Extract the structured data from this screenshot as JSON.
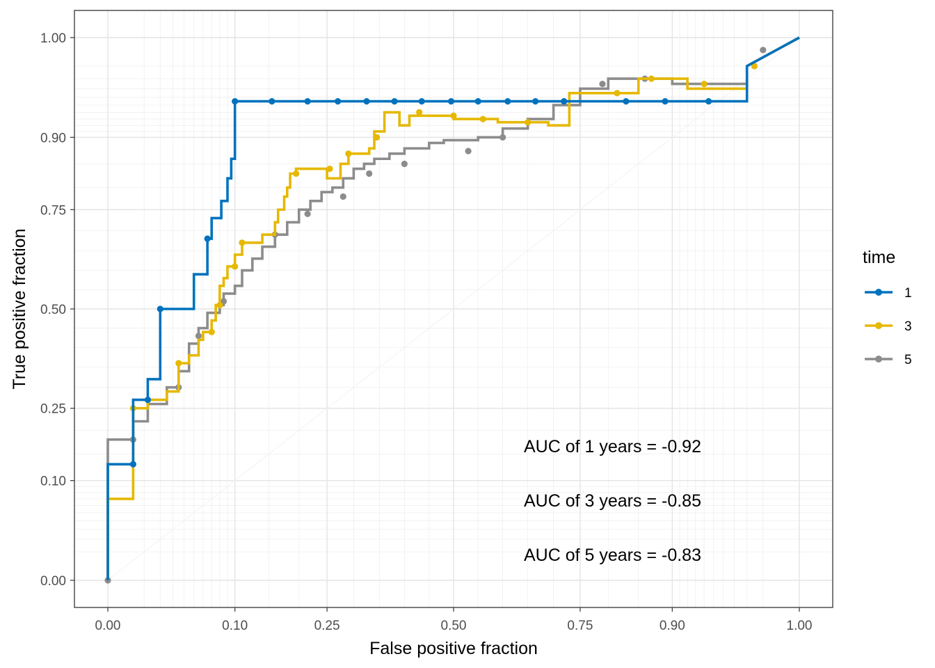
{
  "chart_data": {
    "type": "line",
    "xlabel": "False positive fraction",
    "ylabel": "True positive fraction",
    "xlim": [
      -0.1,
      1.1
    ],
    "ylim": [
      -0.05,
      1.05
    ],
    "x_ticks": [
      "0.00",
      "0.10",
      "0.25",
      "0.50",
      "0.75",
      "0.90",
      "1.00"
    ],
    "y_ticks": [
      "0.00",
      "0.10",
      "0.25",
      "0.50",
      "0.75",
      "0.90",
      "1.00"
    ],
    "grid": true,
    "legend": {
      "title": "time",
      "placement": "right"
    },
    "annotations": [
      "AUC of 1 years = -0.92",
      "AUC of 3 years = -0.85",
      "AUC of 5 years = -0.83"
    ],
    "series": [
      {
        "name": "1",
        "color": "#0072bd",
        "points": [
          [
            0,
            0
          ],
          [
            0,
            0.13
          ],
          [
            0.005,
            0.13
          ],
          [
            0.005,
            0.27
          ],
          [
            0.012,
            0.27
          ],
          [
            0.012,
            0.32
          ],
          [
            0.02,
            0.32
          ],
          [
            0.02,
            0.5
          ],
          [
            0.05,
            0.5
          ],
          [
            0.05,
            0.59
          ],
          [
            0.065,
            0.59
          ],
          [
            0.065,
            0.68
          ],
          [
            0.07,
            0.68
          ],
          [
            0.07,
            0.73
          ],
          [
            0.082,
            0.73
          ],
          [
            0.082,
            0.77
          ],
          [
            0.09,
            0.77
          ],
          [
            0.09,
            0.82
          ],
          [
            0.095,
            0.82
          ],
          [
            0.095,
            0.86
          ],
          [
            0.1,
            0.86
          ],
          [
            0.1,
            0.955
          ],
          [
            0.98,
            0.955
          ],
          [
            0.98,
            0.99
          ],
          [
            1.0,
            1.0
          ]
        ],
        "markers": [
          [
            0.005,
            0.13
          ],
          [
            0.012,
            0.27
          ],
          [
            0.02,
            0.5
          ],
          [
            0.065,
            0.68
          ],
          [
            0.1,
            0.955
          ],
          [
            0.155,
            0.955
          ],
          [
            0.215,
            0.955
          ],
          [
            0.27,
            0.955
          ],
          [
            0.325,
            0.955
          ],
          [
            0.38,
            0.955
          ],
          [
            0.435,
            0.955
          ],
          [
            0.495,
            0.955
          ],
          [
            0.55,
            0.955
          ],
          [
            0.61,
            0.955
          ],
          [
            0.665,
            0.955
          ],
          [
            0.72,
            0.955
          ],
          [
            0.83,
            0.955
          ],
          [
            0.89,
            0.955
          ],
          [
            0.945,
            0.955
          ]
        ]
      },
      {
        "name": "3",
        "color": "#e6b800",
        "points": [
          [
            0,
            0
          ],
          [
            0,
            0.07
          ],
          [
            0.005,
            0.07
          ],
          [
            0.005,
            0.25
          ],
          [
            0.012,
            0.25
          ],
          [
            0.012,
            0.27
          ],
          [
            0.025,
            0.27
          ],
          [
            0.025,
            0.29
          ],
          [
            0.035,
            0.29
          ],
          [
            0.035,
            0.36
          ],
          [
            0.045,
            0.36
          ],
          [
            0.045,
            0.38
          ],
          [
            0.055,
            0.38
          ],
          [
            0.055,
            0.42
          ],
          [
            0.06,
            0.42
          ],
          [
            0.06,
            0.44
          ],
          [
            0.07,
            0.44
          ],
          [
            0.07,
            0.47
          ],
          [
            0.075,
            0.47
          ],
          [
            0.075,
            0.51
          ],
          [
            0.08,
            0.51
          ],
          [
            0.08,
            0.56
          ],
          [
            0.085,
            0.56
          ],
          [
            0.085,
            0.58
          ],
          [
            0.09,
            0.58
          ],
          [
            0.09,
            0.61
          ],
          [
            0.1,
            0.61
          ],
          [
            0.1,
            0.64
          ],
          [
            0.11,
            0.64
          ],
          [
            0.11,
            0.67
          ],
          [
            0.14,
            0.67
          ],
          [
            0.14,
            0.69
          ],
          [
            0.16,
            0.69
          ],
          [
            0.16,
            0.72
          ],
          [
            0.165,
            0.72
          ],
          [
            0.165,
            0.75
          ],
          [
            0.175,
            0.75
          ],
          [
            0.175,
            0.78
          ],
          [
            0.18,
            0.78
          ],
          [
            0.18,
            0.8
          ],
          [
            0.185,
            0.8
          ],
          [
            0.185,
            0.83
          ],
          [
            0.195,
            0.83
          ],
          [
            0.195,
            0.84
          ],
          [
            0.25,
            0.84
          ],
          [
            0.25,
            0.82
          ],
          [
            0.275,
            0.82
          ],
          [
            0.275,
            0.85
          ],
          [
            0.29,
            0.85
          ],
          [
            0.29,
            0.87
          ],
          [
            0.33,
            0.87
          ],
          [
            0.33,
            0.88
          ],
          [
            0.34,
            0.88
          ],
          [
            0.34,
            0.91
          ],
          [
            0.36,
            0.91
          ],
          [
            0.36,
            0.94
          ],
          [
            0.39,
            0.94
          ],
          [
            0.39,
            0.92
          ],
          [
            0.41,
            0.92
          ],
          [
            0.41,
            0.935
          ],
          [
            0.5,
            0.935
          ],
          [
            0.5,
            0.93
          ],
          [
            0.59,
            0.93
          ],
          [
            0.59,
            0.925
          ],
          [
            0.69,
            0.925
          ],
          [
            0.69,
            0.92
          ],
          [
            0.73,
            0.92
          ],
          [
            0.73,
            0.965
          ],
          [
            0.85,
            0.965
          ],
          [
            0.85,
            0.98
          ],
          [
            0.92,
            0.98
          ],
          [
            0.92,
            0.97
          ],
          [
            0.98,
            0.97
          ],
          [
            0.98,
            0.99
          ],
          [
            1.0,
            1.0
          ]
        ],
        "markers": [
          [
            0.005,
            0.25
          ],
          [
            0.035,
            0.36
          ],
          [
            0.07,
            0.44
          ],
          [
            0.08,
            0.51
          ],
          [
            0.1,
            0.61
          ],
          [
            0.11,
            0.67
          ],
          [
            0.195,
            0.83
          ],
          [
            0.255,
            0.84
          ],
          [
            0.29,
            0.87
          ],
          [
            0.345,
            0.9
          ],
          [
            0.43,
            0.94
          ],
          [
            0.5,
            0.935
          ],
          [
            0.56,
            0.93
          ],
          [
            0.65,
            0.925
          ],
          [
            0.815,
            0.965
          ],
          [
            0.87,
            0.98
          ],
          [
            0.94,
            0.975
          ],
          [
            0.985,
            0.99
          ]
        ]
      },
      {
        "name": "5",
        "color": "#8c8c8c",
        "points": [
          [
            0,
            0
          ],
          [
            0,
            0.18
          ],
          [
            0.005,
            0.18
          ],
          [
            0.005,
            0.22
          ],
          [
            0.012,
            0.22
          ],
          [
            0.012,
            0.26
          ],
          [
            0.025,
            0.26
          ],
          [
            0.025,
            0.3
          ],
          [
            0.035,
            0.3
          ],
          [
            0.035,
            0.34
          ],
          [
            0.045,
            0.34
          ],
          [
            0.045,
            0.41
          ],
          [
            0.055,
            0.41
          ],
          [
            0.055,
            0.45
          ],
          [
            0.065,
            0.45
          ],
          [
            0.065,
            0.49
          ],
          [
            0.08,
            0.49
          ],
          [
            0.08,
            0.51
          ],
          [
            0.085,
            0.51
          ],
          [
            0.085,
            0.54
          ],
          [
            0.1,
            0.54
          ],
          [
            0.1,
            0.56
          ],
          [
            0.11,
            0.56
          ],
          [
            0.11,
            0.6
          ],
          [
            0.125,
            0.6
          ],
          [
            0.125,
            0.63
          ],
          [
            0.14,
            0.63
          ],
          [
            0.14,
            0.66
          ],
          [
            0.16,
            0.66
          ],
          [
            0.16,
            0.69
          ],
          [
            0.18,
            0.69
          ],
          [
            0.18,
            0.72
          ],
          [
            0.2,
            0.72
          ],
          [
            0.2,
            0.75
          ],
          [
            0.22,
            0.75
          ],
          [
            0.22,
            0.77
          ],
          [
            0.24,
            0.77
          ],
          [
            0.24,
            0.79
          ],
          [
            0.26,
            0.79
          ],
          [
            0.26,
            0.8
          ],
          [
            0.28,
            0.8
          ],
          [
            0.28,
            0.82
          ],
          [
            0.3,
            0.82
          ],
          [
            0.3,
            0.84
          ],
          [
            0.32,
            0.84
          ],
          [
            0.32,
            0.85
          ],
          [
            0.34,
            0.85
          ],
          [
            0.34,
            0.86
          ],
          [
            0.37,
            0.86
          ],
          [
            0.37,
            0.87
          ],
          [
            0.4,
            0.87
          ],
          [
            0.4,
            0.88
          ],
          [
            0.45,
            0.88
          ],
          [
            0.45,
            0.89
          ],
          [
            0.48,
            0.89
          ],
          [
            0.48,
            0.895
          ],
          [
            0.55,
            0.895
          ],
          [
            0.55,
            0.9
          ],
          [
            0.6,
            0.9
          ],
          [
            0.6,
            0.915
          ],
          [
            0.65,
            0.915
          ],
          [
            0.65,
            0.93
          ],
          [
            0.7,
            0.93
          ],
          [
            0.7,
            0.95
          ],
          [
            0.75,
            0.95
          ],
          [
            0.75,
            0.97
          ],
          [
            0.8,
            0.97
          ],
          [
            0.8,
            0.98
          ],
          [
            0.9,
            0.98
          ],
          [
            0.9,
            0.975
          ],
          [
            0.98,
            0.975
          ],
          [
            0.98,
            0.99
          ],
          [
            1.0,
            1.0
          ]
        ],
        "markers": [
          [
            0.0,
            0.0
          ],
          [
            0.005,
            0.18
          ],
          [
            0.035,
            0.3
          ],
          [
            0.055,
            0.43
          ],
          [
            0.085,
            0.52
          ],
          [
            0.16,
            0.69
          ],
          [
            0.215,
            0.74
          ],
          [
            0.28,
            0.78
          ],
          [
            0.33,
            0.83
          ],
          [
            0.4,
            0.85
          ],
          [
            0.53,
            0.875
          ],
          [
            0.6,
            0.9
          ],
          [
            0.72,
            0.955
          ],
          [
            0.79,
            0.975
          ],
          [
            0.86,
            0.98
          ],
          [
            0.99,
            0.998
          ]
        ]
      }
    ]
  }
}
